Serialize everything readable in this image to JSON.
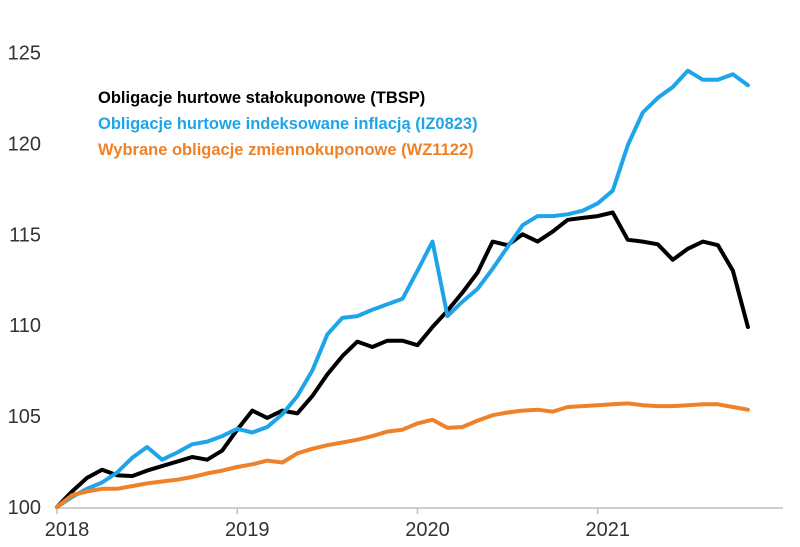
{
  "chart_data": {
    "type": "line",
    "title": "",
    "legend_position": "top-left",
    "grid": false,
    "ylim": [
      100,
      125
    ],
    "y_ticks": [
      100,
      105,
      110,
      115,
      120,
      125
    ],
    "x_tick_labels": [
      "2018",
      "2019",
      "2020",
      "2021"
    ],
    "x": [
      "2018-01",
      "2018-02",
      "2018-03",
      "2018-04",
      "2018-05",
      "2018-06",
      "2018-07",
      "2018-08",
      "2018-09",
      "2018-10",
      "2018-11",
      "2018-12",
      "2019-01",
      "2019-02",
      "2019-03",
      "2019-04",
      "2019-05",
      "2019-06",
      "2019-07",
      "2019-08",
      "2019-09",
      "2019-10",
      "2019-11",
      "2019-12",
      "2020-01",
      "2020-02",
      "2020-03",
      "2020-04",
      "2020-05",
      "2020-06",
      "2020-07",
      "2020-08",
      "2020-09",
      "2020-10",
      "2020-11",
      "2020-12",
      "2021-01",
      "2021-02",
      "2021-03",
      "2021-04",
      "2021-05",
      "2021-06",
      "2021-07",
      "2021-08",
      "2021-09",
      "2021-10",
      "2021-11"
    ],
    "series": [
      {
        "name": "Obligacje hurtowe stałokuponowe (TBSP)",
        "color": "#000000",
        "values": [
          100.0,
          100.85,
          101.6,
          102.05,
          101.75,
          101.7,
          102.0,
          102.25,
          102.5,
          102.75,
          102.6,
          103.1,
          104.25,
          105.3,
          104.9,
          105.3,
          105.15,
          106.1,
          107.3,
          108.3,
          109.1,
          108.8,
          109.15,
          109.15,
          108.9,
          109.9,
          110.8,
          111.8,
          112.9,
          114.6,
          114.4,
          115.0,
          114.6,
          115.15,
          115.8,
          115.9,
          116.0,
          116.2,
          114.7,
          114.6,
          114.45,
          113.6,
          114.2,
          114.6,
          114.4,
          113.0,
          109.9
        ]
      },
      {
        "name": "Obligacje hurtowe indeksowane inflacją (IZ0823)",
        "color": "#1EA5E9",
        "values": [
          100.0,
          100.55,
          101.0,
          101.35,
          101.9,
          102.7,
          103.3,
          102.6,
          103.0,
          103.45,
          103.6,
          103.9,
          104.3,
          104.1,
          104.4,
          105.1,
          106.1,
          107.5,
          109.5,
          110.4,
          110.5,
          110.85,
          111.15,
          111.45,
          113.0,
          114.6,
          110.5,
          111.3,
          112.0,
          113.1,
          114.3,
          115.5,
          116.0,
          116.0,
          116.1,
          116.3,
          116.7,
          117.4,
          119.9,
          121.7,
          122.5,
          123.1,
          124.0,
          123.5,
          123.5,
          123.8,
          123.2
        ]
      },
      {
        "name": "Wybrane obligacje zmiennokuponowe (WZ1122)",
        "color": "#EF8128",
        "values": [
          100.0,
          100.65,
          100.85,
          101.0,
          101.0,
          101.15,
          101.3,
          101.4,
          101.5,
          101.65,
          101.85,
          102.0,
          102.2,
          102.35,
          102.55,
          102.45,
          102.95,
          103.2,
          103.4,
          103.55,
          103.7,
          103.9,
          104.15,
          104.25,
          104.6,
          104.8,
          104.35,
          104.4,
          104.75,
          105.05,
          105.2,
          105.3,
          105.35,
          105.25,
          105.5,
          105.55,
          105.6,
          105.65,
          105.7,
          105.6,
          105.55,
          105.55,
          105.6,
          105.65,
          105.65,
          105.5,
          105.35
        ]
      }
    ],
    "colors": {
      "axis_line": "#BFBFBF",
      "axis_text": "#333333",
      "background": "#FFFFFF"
    }
  }
}
